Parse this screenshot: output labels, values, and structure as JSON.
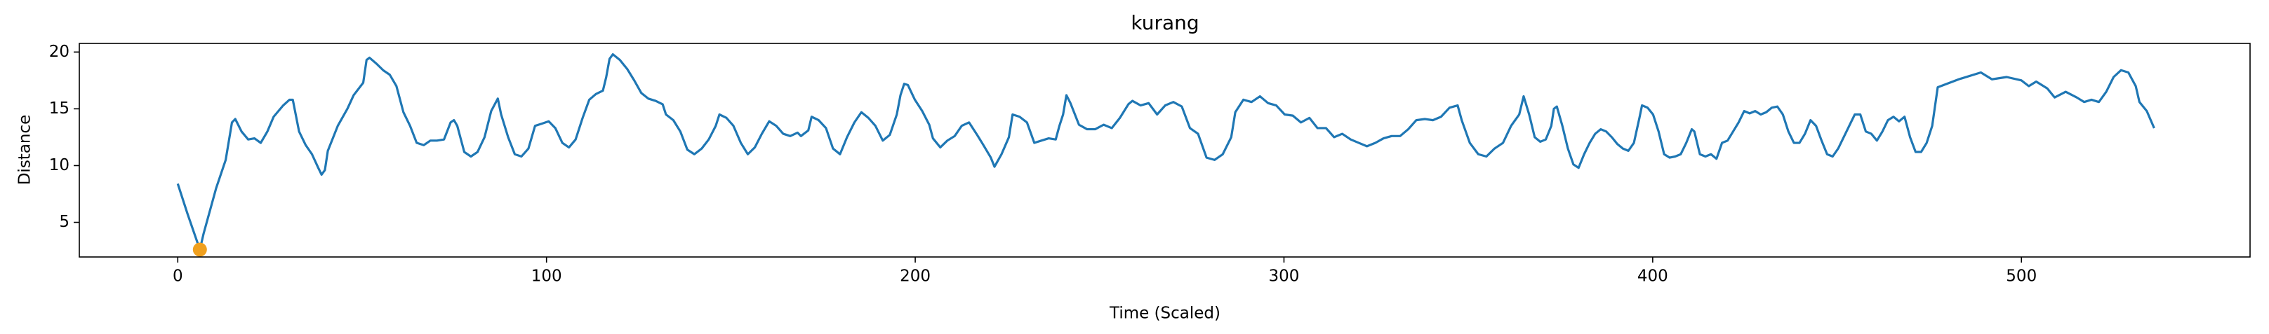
{
  "chart_data": {
    "type": "line",
    "title": "kurang",
    "x_label": "Time (Scaled)",
    "y_label": "Distance",
    "xlim": [
      -26.7,
      562
    ],
    "ylim": [
      1.95,
      20.76
    ],
    "xticks": [
      0,
      100,
      200,
      300,
      400,
      500
    ],
    "yticks": [
      5,
      10,
      15,
      20
    ],
    "grid": false,
    "x": [
      0,
      2.6,
      6,
      7,
      10.4,
      13,
      14.7,
      15.6,
      17.3,
      19.1,
      20.8,
      22.5,
      24.3,
      26,
      28.6,
      30.3,
      31.2,
      32.9,
      34.7,
      36.4,
      38.1,
      39,
      39.9,
      40.7,
      43.4,
      46,
      47.7,
      50.3,
      51.2,
      52,
      53.8,
      55.7,
      57.5,
      59.3,
      61.2,
      63,
      64.8,
      66.7,
      68.5,
      70.3,
      72.2,
      74,
      74.9,
      75.8,
      77.7,
      79.5,
      81.3,
      83.2,
      85,
      86.8,
      87.7,
      89.6,
      91.4,
      93.2,
      95.1,
      96.9,
      98.8,
      100.6,
      102.4,
      104.3,
      106.1,
      107.9,
      109.8,
      111.6,
      113.4,
      115.3,
      116.2,
      117.1,
      118,
      119.9,
      121.9,
      123.8,
      125.7,
      127.6,
      129.6,
      131.5,
      132.4,
      134.4,
      136.3,
      138.2,
      140.1,
      142.1,
      144,
      145.9,
      146.9,
      148.8,
      150.7,
      152.7,
      154.6,
      156.5,
      158.4,
      160.4,
      162.3,
      164.2,
      166.1,
      168.1,
      169,
      171,
      171.9,
      173.8,
      175.8,
      177.7,
      179.6,
      181.5,
      183.5,
      185.4,
      187.3,
      189.2,
      191.2,
      193.1,
      195,
      196,
      197,
      198,
      199.9,
      201.9,
      203.8,
      204.8,
      206.8,
      208.7,
      210.7,
      212.6,
      214.6,
      216.6,
      218.5,
      220.5,
      221.5,
      223.4,
      225.4,
      226.4,
      228.3,
      230.3,
      232.3,
      234.2,
      236.2,
      238.1,
      239.1,
      240.1,
      241,
      242.1,
      244.4,
      246.6,
      248.8,
      251.1,
      253.3,
      255.5,
      257.8,
      258.9,
      261.1,
      263.3,
      265.6,
      267.8,
      270,
      272.3,
      274.5,
      276.7,
      279,
      281.2,
      283.4,
      285.7,
      286.8,
      289,
      291.2,
      293.5,
      295.7,
      297.9,
      300.2,
      302.4,
      304.6,
      306.9,
      309.1,
      311.4,
      313.6,
      315.8,
      318.1,
      320.3,
      322.5,
      324.8,
      327,
      329.2,
      331.5,
      333.7,
      335.9,
      338.2,
      340.4,
      342.6,
      344.9,
      347.1,
      348.2,
      350.4,
      352.7,
      354.9,
      357.1,
      359.4,
      361.6,
      363.8,
      365,
      366.5,
      368,
      369.5,
      371,
      372.5,
      373.2,
      374,
      375.5,
      377,
      378.5,
      379.9,
      381.4,
      382.9,
      384.4,
      385.9,
      387.4,
      388.9,
      390.4,
      391.9,
      393.4,
      394.9,
      396.4,
      397.1,
      398.6,
      400.1,
      401.6,
      403.1,
      404.6,
      406.1,
      407.6,
      409.1,
      410.6,
      411.3,
      412.8,
      414.3,
      415.8,
      417.3,
      418.8,
      420.3,
      421.8,
      423.3,
      424.8,
      426.3,
      427.8,
      429.3,
      430.8,
      432.3,
      433.8,
      435.3,
      436.8,
      438.3,
      439.8,
      441.3,
      442.8,
      444.3,
      445.8,
      447.3,
      448.8,
      450.3,
      451.8,
      453.3,
      454.8,
      456.3,
      457.8,
      459.3,
      460.8,
      462.3,
      463.8,
      465.3,
      466.8,
      468.3,
      469.8,
      471.3,
      472.8,
      474.3,
      475.8,
      477.3,
      483,
      489,
      492,
      496,
      500,
      502,
      504,
      507,
      509,
      512,
      515,
      517,
      519,
      521,
      523,
      525,
      527,
      529,
      531,
      532,
      534,
      536
    ],
    "series": [
      {
        "color": "#1f77b4",
        "values": [
          8.4,
          5.8,
          2.6,
          4,
          8,
          10.5,
          13.8,
          14.1,
          13,
          12.3,
          12.4,
          12,
          13,
          14.3,
          15.3,
          15.8,
          15.8,
          13,
          11.8,
          11,
          9.8,
          9.2,
          9.6,
          11.3,
          13.5,
          15,
          16.2,
          17.3,
          19.3,
          19.5,
          19,
          18.4,
          18,
          17,
          14.7,
          13.5,
          12,
          11.8,
          12.2,
          12.2,
          12.3,
          13.8,
          14,
          13.5,
          11.2,
          10.8,
          11.2,
          12.5,
          14.8,
          15.9,
          14.5,
          12.5,
          11,
          10.8,
          11.5,
          13.5,
          13.7,
          13.9,
          13.3,
          12,
          11.6,
          12.3,
          14.2,
          15.8,
          16.3,
          16.6,
          17.8,
          19.4,
          19.8,
          19.3,
          18.5,
          17.5,
          16.4,
          15.9,
          15.7,
          15.4,
          14.5,
          14,
          13,
          11.4,
          11,
          11.5,
          12.3,
          13.5,
          14.5,
          14.2,
          13.5,
          12,
          11,
          11.6,
          12.8,
          13.9,
          13.5,
          12.8,
          12.6,
          12.9,
          12.6,
          13.1,
          14.3,
          14,
          13.3,
          11.5,
          11,
          12.5,
          13.8,
          14.7,
          14.2,
          13.5,
          12.2,
          12.7,
          14.5,
          16.2,
          17.2,
          17.1,
          15.8,
          14.8,
          13.6,
          12.4,
          11.6,
          12.2,
          12.6,
          13.5,
          13.8,
          12.8,
          11.8,
          10.7,
          9.9,
          11,
          12.5,
          14.5,
          14.3,
          13.8,
          12,
          12.2,
          12.4,
          12.3,
          13.5,
          14.5,
          16.2,
          15.5,
          13.6,
          13.2,
          13.2,
          13.6,
          13.3,
          14.2,
          15.4,
          15.7,
          15.3,
          15.5,
          14.5,
          15.3,
          15.6,
          15.2,
          13.3,
          12.8,
          10.7,
          10.5,
          11,
          12.5,
          14.7,
          15.8,
          15.6,
          16.1,
          15.5,
          15.3,
          14.5,
          14.4,
          13.8,
          14.2,
          13.3,
          13.3,
          12.5,
          12.8,
          12.3,
          12,
          11.7,
          12,
          12.4,
          12.6,
          12.6,
          13.2,
          14,
          14.1,
          14,
          14.3,
          15.1,
          15.3,
          14,
          12,
          11,
          10.8,
          11.5,
          12,
          13.5,
          14.5,
          16.1,
          14.5,
          12.5,
          12.1,
          12.3,
          13.5,
          15,
          15.2,
          13.5,
          11.5,
          10.1,
          9.8,
          11,
          12,
          12.8,
          13.2,
          13,
          12.5,
          11.9,
          11.5,
          11.3,
          12,
          14.2,
          15.3,
          15.1,
          14.5,
          13,
          11,
          10.7,
          10.8,
          11,
          12,
          13.2,
          13,
          11,
          10.8,
          11,
          10.6,
          12,
          12.2,
          13,
          13.8,
          14.8,
          14.6,
          14.8,
          14.5,
          14.7,
          15.1,
          15.2,
          14.5,
          13,
          12,
          12,
          12.8,
          14,
          13.5,
          12.2,
          11,
          10.8,
          11.5,
          12.5,
          13.5,
          14.5,
          14.5,
          13,
          12.8,
          12.2,
          13,
          14,
          14.3,
          13.9,
          14.3,
          12.5,
          11.2,
          11.2,
          12,
          13.5,
          16.9,
          17.6,
          18.2,
          17.6,
          17.8,
          17.5,
          17,
          17.4,
          16.8,
          16,
          16.5,
          16,
          15.6,
          15.8,
          15.6,
          16.5,
          17.8,
          18.4,
          18.2,
          17,
          15.6,
          14.8,
          13.3
        ]
      }
    ],
    "markers": [
      {
        "x": 6,
        "y": 2.6,
        "color": "#f0a01e"
      }
    ]
  }
}
